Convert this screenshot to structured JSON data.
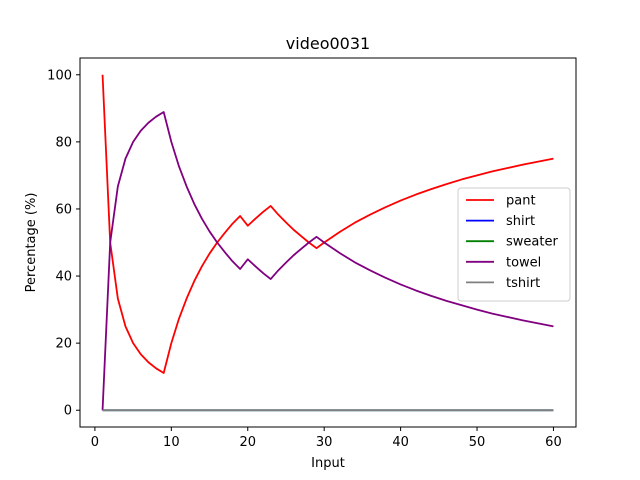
{
  "chart_data": {
    "type": "line",
    "title": "video0031",
    "xlabel": "Input",
    "ylabel": "Percentage (%)",
    "xlim": [
      -1.95,
      62.95
    ],
    "ylim": [
      -5,
      105
    ],
    "xticks": [
      0,
      10,
      20,
      30,
      40,
      50,
      60
    ],
    "yticks": [
      0,
      20,
      40,
      60,
      80,
      100
    ],
    "grid": false,
    "legend_position": "center-right",
    "series": [
      {
        "name": "pant",
        "color": "#ff0000",
        "x": [
          1,
          2,
          3,
          4,
          5,
          6,
          7,
          8,
          9,
          10,
          11,
          12,
          13,
          14,
          15,
          16,
          17,
          18,
          19,
          20,
          21,
          22,
          23,
          24,
          25,
          26,
          27,
          28,
          29,
          30,
          32,
          34,
          36,
          38,
          40,
          42,
          44,
          46,
          48,
          50,
          52,
          54,
          56,
          58,
          60
        ],
        "y": [
          100,
          50,
          33.3,
          25,
          20,
          16.7,
          14.3,
          12.5,
          11.1,
          20,
          27.3,
          33.3,
          38.5,
          42.9,
          46.7,
          50,
          52.9,
          55.6,
          57.9,
          55,
          57.1,
          59.1,
          60.9,
          58.3,
          56,
          53.8,
          51.9,
          50,
          48.3,
          50,
          53.1,
          55.9,
          58.3,
          60.5,
          62.5,
          64.3,
          65.9,
          67.4,
          68.8,
          70,
          71.2,
          72.2,
          73.2,
          74.1,
          75
        ]
      },
      {
        "name": "shirt",
        "color": "#0000ff",
        "x": [
          1,
          60
        ],
        "y": [
          0,
          0
        ]
      },
      {
        "name": "sweater",
        "color": "#008000",
        "x": [
          1,
          60
        ],
        "y": [
          0,
          0
        ]
      },
      {
        "name": "towel",
        "color": "#800080",
        "x": [
          1,
          2,
          3,
          4,
          5,
          6,
          7,
          8,
          9,
          10,
          11,
          12,
          13,
          14,
          15,
          16,
          17,
          18,
          19,
          20,
          21,
          22,
          23,
          24,
          25,
          26,
          27,
          28,
          29,
          30,
          32,
          34,
          36,
          38,
          40,
          42,
          44,
          46,
          48,
          50,
          52,
          54,
          56,
          58,
          60
        ],
        "y": [
          0,
          50,
          66.7,
          75,
          80,
          83.3,
          85.7,
          87.5,
          88.9,
          80,
          72.7,
          66.7,
          61.5,
          57.1,
          53.3,
          50,
          47.1,
          44.4,
          42.1,
          45,
          42.9,
          40.9,
          39.1,
          41.7,
          44,
          46.2,
          48.1,
          50,
          51.7,
          50,
          46.9,
          44.1,
          41.7,
          39.5,
          37.5,
          35.7,
          34.1,
          32.6,
          31.3,
          30,
          28.8,
          27.8,
          26.8,
          25.9,
          25
        ]
      },
      {
        "name": "tshirt",
        "color": "#808080",
        "x": [
          1,
          60
        ],
        "y": [
          0,
          0
        ]
      }
    ]
  }
}
